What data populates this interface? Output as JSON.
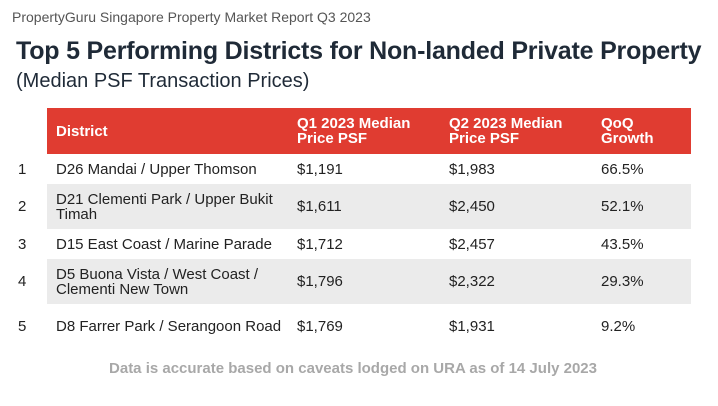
{
  "report_label": "PropertyGuru Singapore Property Market Report Q3 2023",
  "title": "Top 5 Performing Districts for Non-landed Private Property",
  "subtitle": "(Median PSF Transaction Prices)",
  "table": {
    "header": [
      "District",
      "Q1 2023 Median Price PSF",
      "Q2 2023 Median Price PSF",
      "QoQ Growth"
    ],
    "rows": [
      [
        "1",
        "D26 Mandai / Upper Thomson",
        "$1,191",
        "$1,983",
        "66.5%"
      ],
      [
        "2",
        "D21 Clementi Park / Upper Bukit Timah",
        "$1,611",
        "$2,450",
        "52.1%"
      ],
      [
        "3",
        "D15 East Coast / Marine Parade",
        "$1,712",
        "$2,457",
        "43.5%"
      ],
      [
        "4",
        "D5 Buona Vista / West Coast / Clementi New Town",
        "$1,796",
        "$2,322",
        "29.3%"
      ],
      [
        "5",
        "D8 Farrer Park / Serangoon Road",
        "$1,769",
        "$1,931",
        "9.2%"
      ]
    ]
  },
  "footnote": "Data is accurate based on caveats lodged on URA as of 14 July 2023"
}
